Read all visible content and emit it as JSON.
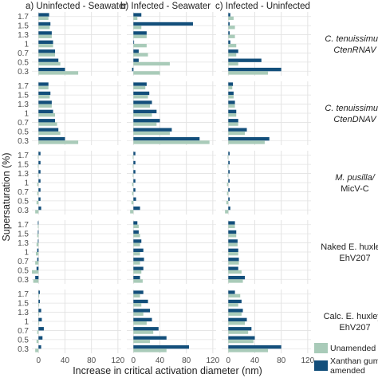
{
  "chart_data": {
    "type": "bar",
    "orientation": "horizontal",
    "xlabel": "Increase in critical activation diameter (nm)",
    "ylabel": "Supersaturation (%)",
    "xlim": [
      -10,
      125
    ],
    "xticks": [
      "0",
      "40",
      "80",
      "120"
    ],
    "categories": [
      "0.3",
      "0.5",
      "0.7",
      "1",
      "1.3",
      "1.5",
      "1.7"
    ],
    "columns": [
      "a) Uninfected - Seawater",
      "b) Infected - Seawater",
      "c) Infected - Uninfected"
    ],
    "rows": [
      {
        "line1": "C. tenuissimus/",
        "line2": "CtenRNAV"
      },
      {
        "line1": "C. tenuissimus/",
        "line2": "CtenDNAV"
      },
      {
        "line1": "M. pusilla/",
        "line2": "MicV-C"
      },
      {
        "line1": "Naked E. huxleyi/",
        "line2": "EhV207"
      },
      {
        "line1": "Calc. E. huxleyi/",
        "line2": "EhV207"
      }
    ],
    "legend": {
      "unamended": "Unamended",
      "xanthan_line1": "Xanthan gum",
      "xanthan_line2": "amended",
      "placement": "bottom-right"
    },
    "colors": {
      "unamended": "#a9cbb9",
      "amended": "#134f7b",
      "grid": "#e3e3e3",
      "panel_bg": "#ffffff"
    },
    "grid": true,
    "panels": [
      [
        {
          "unamended": [
            60,
            33,
            25,
            22,
            20,
            17,
            15
          ],
          "amended": [
            40,
            30,
            25,
            22,
            20,
            18,
            16
          ]
        },
        {
          "unamended": [
            40,
            55,
            22,
            20,
            20,
            12,
            6
          ],
          "amended": [
            -2,
            8,
            8,
            1,
            20,
            90,
            12
          ]
        },
        {
          "unamended": [
            60,
            15,
            12,
            12,
            10,
            10,
            8
          ],
          "amended": [
            80,
            50,
            15,
            3,
            2,
            2,
            3
          ]
        }
      ],
      [
        {
          "unamended": [
            60,
            33,
            28,
            25,
            20,
            17,
            15
          ],
          "amended": [
            40,
            30,
            25,
            22,
            20,
            18,
            15
          ]
        },
        {
          "unamended": [
            115,
            55,
            35,
            28,
            25,
            22,
            18
          ],
          "amended": [
            100,
            58,
            40,
            35,
            28,
            24,
            20
          ]
        },
        {
          "unamended": [
            55,
            25,
            15,
            12,
            10,
            8,
            6
          ],
          "amended": [
            62,
            28,
            15,
            12,
            10,
            8,
            7
          ]
        }
      ],
      [
        {
          "unamended": [
            -5,
            -3,
            -2,
            -2,
            -1,
            -1,
            -1
          ],
          "amended": [
            4,
            3,
            3,
            3,
            3,
            3,
            3
          ]
        },
        {
          "unamended": [
            -5,
            -3,
            -2,
            -2,
            -1,
            -1,
            -1
          ],
          "amended": [
            10,
            4,
            3,
            3,
            3,
            3,
            3
          ]
        },
        {
          "unamended": [
            -5,
            -3,
            -2,
            -2,
            -1,
            -1,
            -1
          ],
          "amended": [
            3,
            2,
            2,
            2,
            2,
            2,
            2
          ]
        }
      ],
      [
        {
          "unamended": [
            -8,
            -10,
            -5,
            -4,
            -3,
            -2,
            -1
          ],
          "amended": [
            -5,
            -3,
            -2,
            -2,
            -1,
            -1,
            -1
          ]
        },
        {
          "unamended": [
            14,
            12,
            10,
            10,
            10,
            10,
            8
          ],
          "amended": [
            10,
            15,
            16,
            15,
            12,
            8,
            6
          ]
        },
        {
          "unamended": [
            22,
            20,
            16,
            15,
            14,
            12,
            10
          ],
          "amended": [
            25,
            15,
            16,
            15,
            14,
            12,
            10
          ]
        }
      ],
      [
        {
          "unamended": [
            -5,
            -3,
            -2,
            1,
            1,
            1,
            1
          ],
          "amended": [
            4,
            6,
            8,
            5,
            4,
            2,
            2
          ]
        },
        {
          "unamended": [
            50,
            25,
            30,
            20,
            15,
            12,
            10
          ],
          "amended": [
            84,
            50,
            38,
            28,
            25,
            22,
            15
          ]
        },
        {
          "unamended": [
            60,
            38,
            30,
            25,
            20,
            15,
            18
          ],
          "amended": [
            80,
            40,
            35,
            28,
            22,
            20,
            10
          ]
        }
      ]
    ]
  }
}
